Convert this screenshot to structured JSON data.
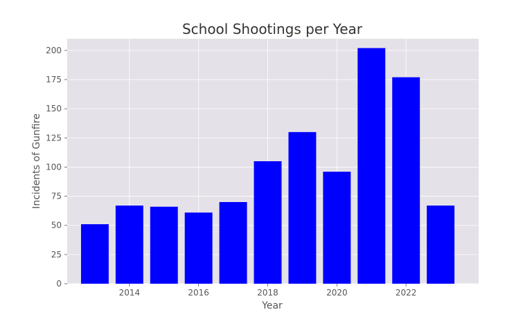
{
  "chart_data": {
    "type": "bar",
    "title": "School Shootings per Year",
    "xlabel": "Year",
    "ylabel": "Incidents of Gunfire",
    "x": [
      2013,
      2014,
      2015,
      2016,
      2017,
      2018,
      2019,
      2020,
      2021,
      2022,
      2023
    ],
    "values": [
      51,
      67,
      66,
      61,
      70,
      105,
      130,
      96,
      202,
      177,
      67
    ],
    "xticks": [
      "2014",
      "2016",
      "2018",
      "2020",
      "2022"
    ],
    "yticks": [
      "0",
      "25",
      "50",
      "75",
      "100",
      "125",
      "150",
      "175",
      "200"
    ],
    "ylim": [
      0,
      210
    ],
    "grid": true,
    "colors": {
      "bar": "#0000ff",
      "plot_background": "#e5e1e8",
      "grid": "#ffffff"
    }
  }
}
